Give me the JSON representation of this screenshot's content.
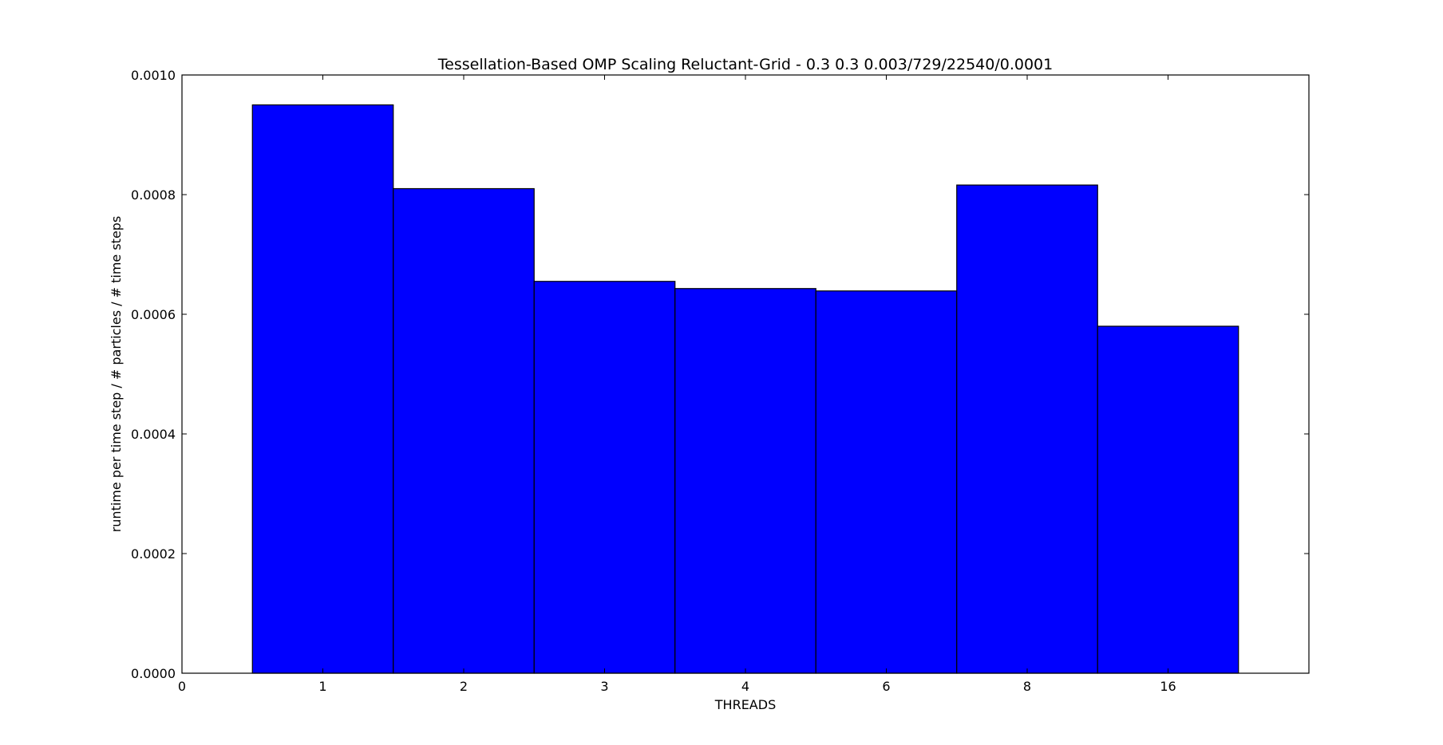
{
  "chart_data": {
    "type": "bar",
    "title": "Tessellation-Based OMP Scaling Reluctant-Grid - 0.3 0.3 0.003/729/22540/0.0001",
    "xlabel": "THREADS",
    "ylabel": "runtime per time step / # particles / # time steps",
    "x_tick_labels": [
      "0",
      "1",
      "2",
      "3",
      "4",
      "6",
      "8",
      "16"
    ],
    "categories": [
      "1",
      "2",
      "3",
      "4",
      "6",
      "8",
      "16"
    ],
    "values": [
      0.00095,
      0.00081,
      0.000655,
      0.000643,
      0.000639,
      0.000816,
      0.00058
    ],
    "y_ticks": [
      "0.0000",
      "0.0002",
      "0.0004",
      "0.0006",
      "0.0008",
      "0.0010"
    ],
    "ylim": [
      0,
      0.001
    ],
    "xlim": [
      0,
      8
    ],
    "grid": false,
    "legend": "none",
    "bar_color": "#0000ff",
    "edge_color": "#000000"
  }
}
